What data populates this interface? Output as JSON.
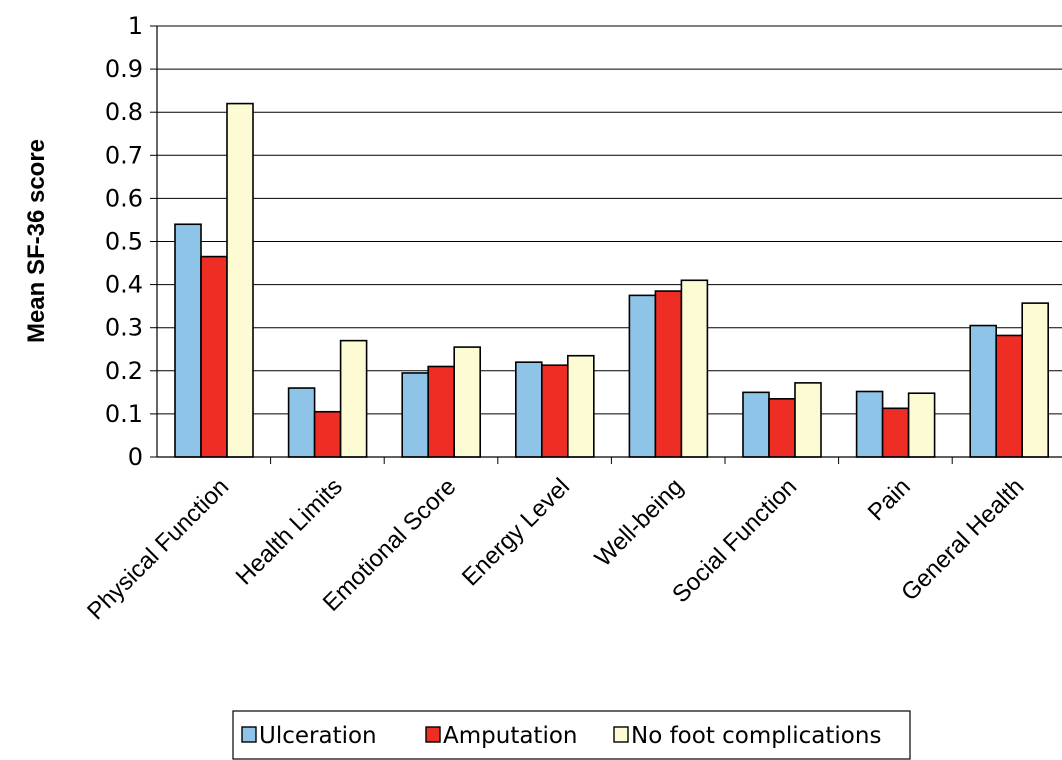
{
  "chart_data": {
    "type": "bar",
    "title": "",
    "xlabel": "",
    "ylabel": "Mean SF-36 score",
    "ylim": [
      0,
      1
    ],
    "yticks": [
      "0",
      "0.1",
      "0.2",
      "0.3",
      "0.4",
      "0.5",
      "0.6",
      "0.7",
      "0.8",
      "0.9",
      "1"
    ],
    "grid": true,
    "legend_position": "bottom",
    "categories": [
      "Physical Function",
      "Health Limits",
      "Emotional Score",
      "Energy Level",
      "Well-being",
      "Social Function",
      "Pain",
      "General Health"
    ],
    "series": [
      {
        "name": "Ulceration",
        "color": "#8dc4e8",
        "values": [
          0.54,
          0.16,
          0.195,
          0.22,
          0.375,
          0.15,
          0.152,
          0.305
        ]
      },
      {
        "name": "Amputation",
        "color": "#ee2e24",
        "values": [
          0.465,
          0.105,
          0.21,
          0.213,
          0.385,
          0.135,
          0.113,
          0.282
        ]
      },
      {
        "name": "No foot complications",
        "color": "#fdfbd3",
        "values": [
          0.82,
          0.27,
          0.255,
          0.235,
          0.41,
          0.172,
          0.148,
          0.357
        ]
      }
    ]
  }
}
